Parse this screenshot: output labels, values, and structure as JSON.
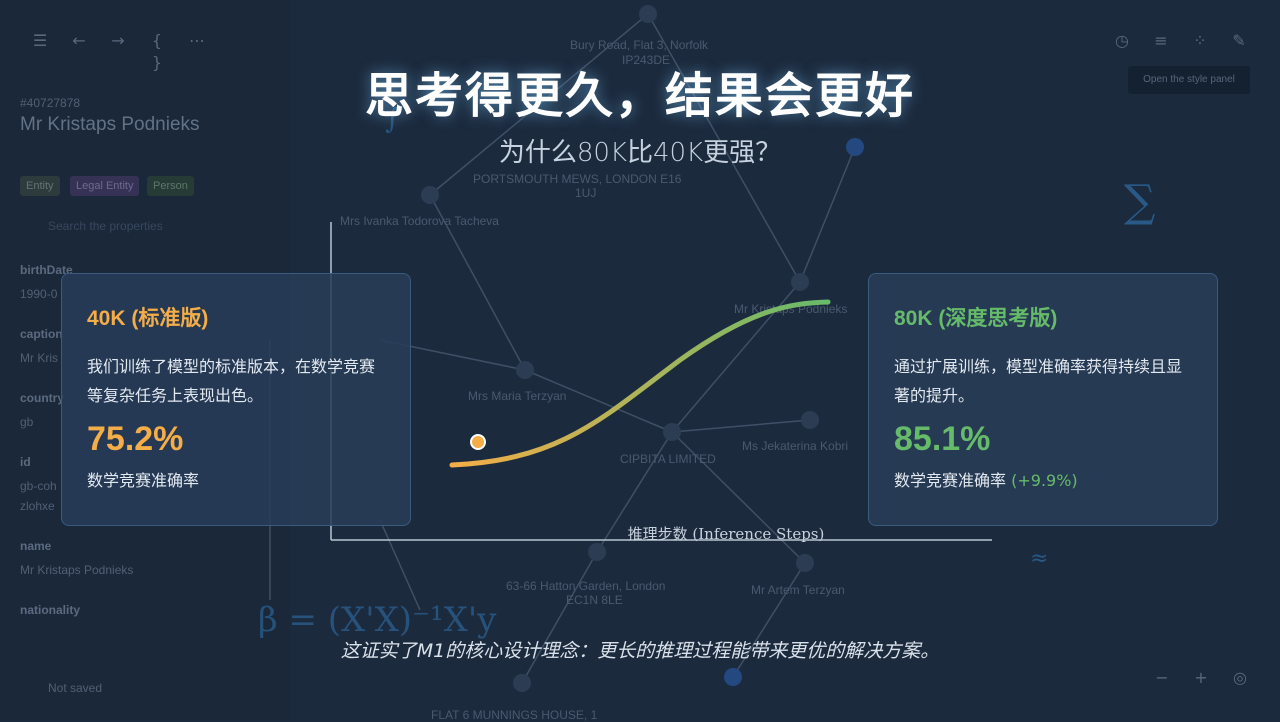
{
  "slide": {
    "title": "思考得更久，结果会更好",
    "subtitle": "为什么80K比40K更强？",
    "footer": "这证实了M1的核心设计理念：更长的推理过程能带来更优的解决方案。",
    "axis_label": "推理步数 (Inference Steps)"
  },
  "cards": {
    "left": {
      "heading": "40K (标准版)",
      "description": "我们训练了模型的标准版本，在数学竞赛等复杂任务上表现出色。",
      "value": "75.2%",
      "caption": "数学竞赛准确率"
    },
    "right": {
      "heading": "80K (深度思考版)",
      "description": "通过扩展训练，模型准确率获得持续且显著的提升。",
      "value": "85.1%",
      "caption": "数学竞赛准确率",
      "delta": "(+9.9%)"
    }
  },
  "colors": {
    "orange": "#f5ad47",
    "green": "#66bb6a",
    "background": "#1c2a3d"
  },
  "background_app": {
    "record_id": "#40727878",
    "entity_title": "Mr Kristaps Podnieks",
    "chips": [
      "Entity",
      "Legal Entity",
      "Person"
    ],
    "search_placeholder": "Search the properties",
    "fields": [
      {
        "name": "birthDate",
        "value": "1990-0"
      },
      {
        "name": "caption",
        "value": "Mr Kris"
      },
      {
        "name": "country",
        "value": "gb"
      },
      {
        "name": "id",
        "value": "gb-coh"
      },
      {
        "name": "name",
        "value": "Mr Kristaps Podnieks"
      },
      {
        "name": "nationality",
        "value": ""
      }
    ],
    "id_extra": "zlohxe",
    "not_saved": "Not saved",
    "tooltip": "Open the style panel",
    "node_labels": [
      "Bury Road, Flat 3, Norfolk",
      "IP243DE",
      "PORTSMOUTH MEWS, LONDON E16",
      "1UJ",
      "Mrs Ivanka Todorova Tacheva",
      "Mr Kristaps Podnieks",
      "Mrs Maria Terzyan",
      "CIPBITA LIMITED",
      "Ms Jekaterina Kobri",
      "63-66 Hatton Garden, London",
      "EC1N 8LE",
      "Mr Artem Terzyan",
      "FLAT 6 MUNNINGS HOUSE, 1"
    ],
    "math_formula": "β = (X'X)⁻¹X'y",
    "icons": [
      "menu-icon",
      "back-icon",
      "forward-icon",
      "braces-icon",
      "more-icon",
      "history-icon",
      "filter-icon",
      "scatter-icon",
      "brush-icon",
      "zoom-out-icon",
      "zoom-in-icon",
      "locate-icon"
    ]
  }
}
